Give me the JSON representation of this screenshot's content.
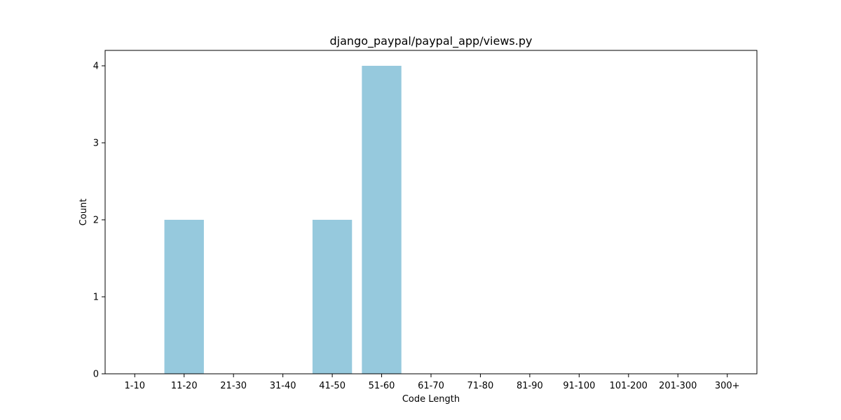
{
  "chart_data": {
    "type": "bar",
    "title": "django_paypal/paypal_app/views.py",
    "xlabel": "Code Length",
    "ylabel": "Count",
    "categories": [
      "1-10",
      "11-20",
      "21-30",
      "31-40",
      "41-50",
      "51-60",
      "61-70",
      "71-80",
      "81-90",
      "91-100",
      "101-200",
      "201-300",
      "300+"
    ],
    "values": [
      0,
      2,
      0,
      0,
      2,
      4,
      0,
      0,
      0,
      0,
      0,
      0,
      0
    ],
    "ylim": [
      0,
      4.2
    ],
    "yticks": [
      0,
      1,
      2,
      3,
      4
    ],
    "bar_color": "#96c9dd",
    "grid": false,
    "legend": "none"
  }
}
